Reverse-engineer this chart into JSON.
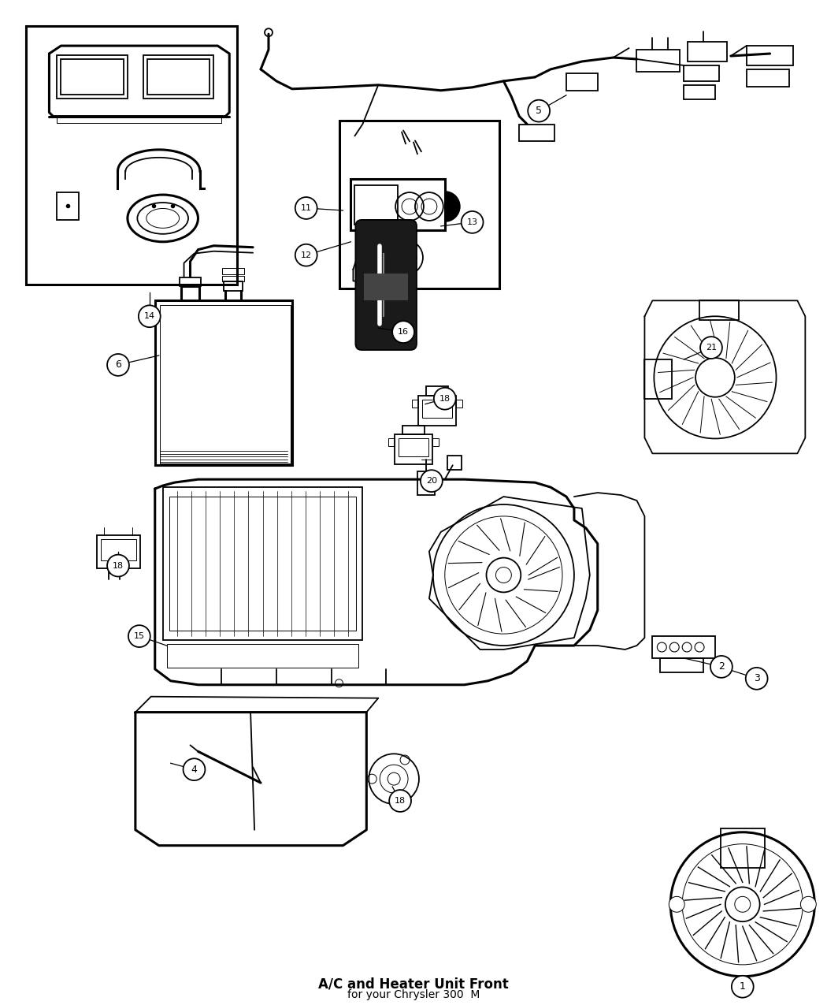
{
  "title": "A/C and Heater Unit Front",
  "subtitle": "for your Chrysler 300  M",
  "bg_color": "#ffffff",
  "line_color": "#000000",
  "fig_width": 10.5,
  "fig_height": 12.75
}
